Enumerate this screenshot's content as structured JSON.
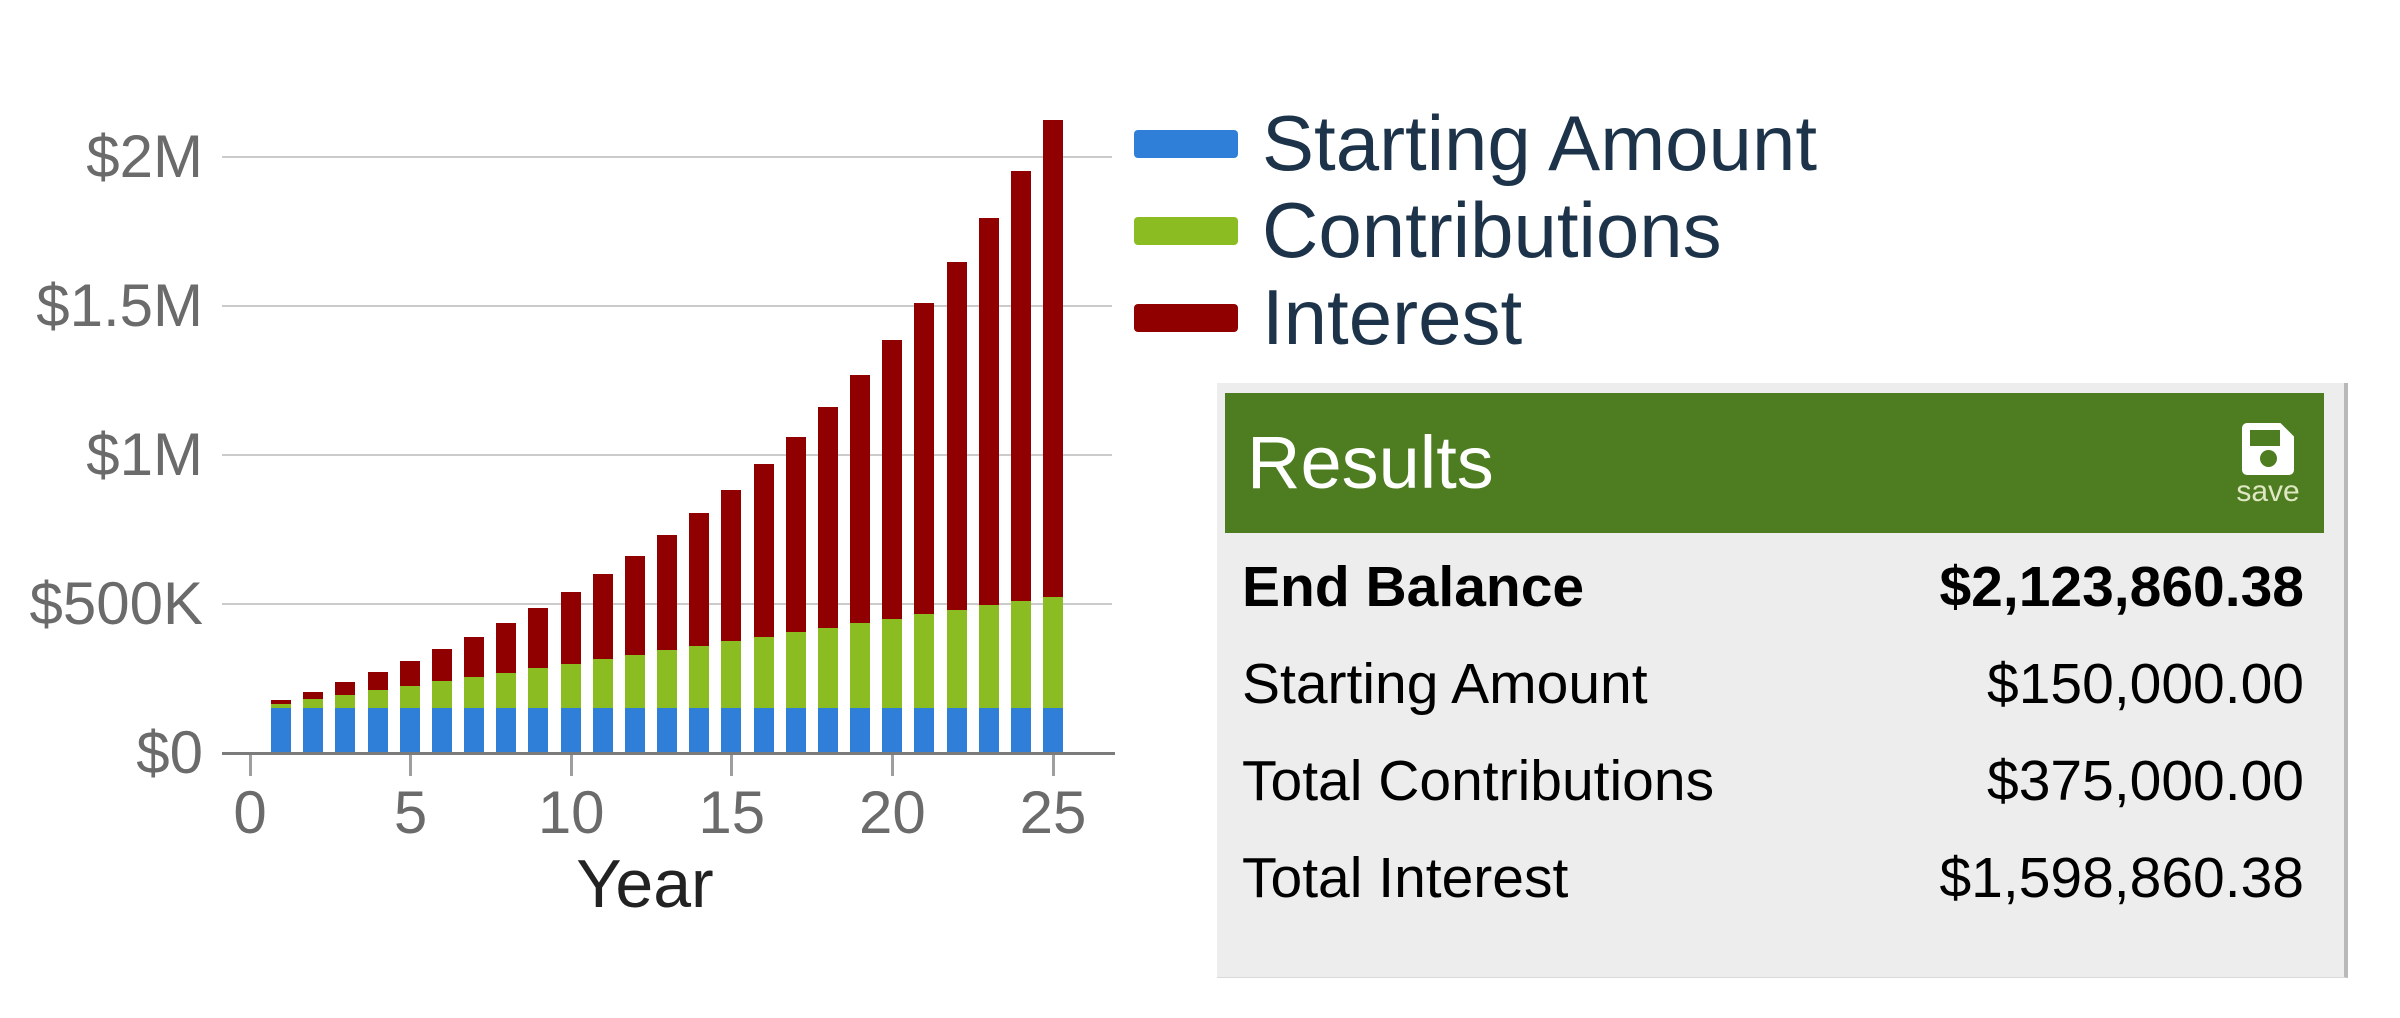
{
  "chart": {
    "y_axis": {
      "labels": [
        "$0",
        "$500K",
        "$1M",
        "$1.5M",
        "$2M"
      ]
    },
    "x_axis": {
      "title": "Year",
      "ticks": [
        "0",
        "5",
        "10",
        "15",
        "20",
        "25"
      ]
    },
    "legend": [
      {
        "label": "Starting Amount",
        "color": "#2f7ed8"
      },
      {
        "label": "Contributions",
        "color": "#8bbc21"
      },
      {
        "label": "Interest",
        "color": "#910000"
      }
    ]
  },
  "chart_data": {
    "type": "bar",
    "stacked": true,
    "title": "",
    "xlabel": "Year",
    "ylabel": "",
    "ylim": [
      0,
      2200000
    ],
    "ytick_step": 500000,
    "grid": true,
    "legend_position": "top-right",
    "x": [
      1,
      2,
      3,
      4,
      5,
      6,
      7,
      8,
      9,
      10,
      11,
      12,
      13,
      14,
      15,
      16,
      17,
      18,
      19,
      20,
      21,
      22,
      23,
      24,
      25
    ],
    "series": [
      {
        "name": "Starting Amount",
        "color": "#2f7ed8",
        "values": [
          150000,
          150000,
          150000,
          150000,
          150000,
          150000,
          150000,
          150000,
          150000,
          150000,
          150000,
          150000,
          150000,
          150000,
          150000,
          150000,
          150000,
          150000,
          150000,
          150000,
          150000,
          150000,
          150000,
          150000,
          150000
        ]
      },
      {
        "name": "Contributions",
        "color": "#8bbc21",
        "values": [
          15000,
          30000,
          45000,
          60000,
          75000,
          90000,
          105000,
          120000,
          135000,
          150000,
          165000,
          180000,
          195000,
          210000,
          225000,
          240000,
          255000,
          270000,
          285000,
          300000,
          315000,
          330000,
          345000,
          360000,
          375000
        ]
      },
      {
        "name": "Interest",
        "color": "#910000",
        "values": [
          12000,
          26160,
          42653,
          61665,
          83398,
          108070,
          135916,
          167189,
          202164,
          241137,
          284428,
          332382,
          385373,
          443803,
          508107,
          578756,
          656256,
          741157,
          834049,
          935573,
          1046419,
          1167332,
          1299119,
          1442649,
          1598860
        ]
      }
    ]
  },
  "results": {
    "title": "Results",
    "save_label": "save",
    "rows": [
      {
        "label": "End Balance",
        "value": "$2,123,860.38"
      },
      {
        "label": "Starting Amount",
        "value": "$150,000.00"
      },
      {
        "label": "Total Contributions",
        "value": "$375,000.00"
      },
      {
        "label": "Total Interest",
        "value": "$1,598,860.38"
      }
    ]
  },
  "colors": {
    "header_green": "#4d7d20",
    "panel_bg": "#ededed",
    "grid_line": "#cbcbcb",
    "axis_text": "#6b6b6b",
    "legend_text": "#1d3349"
  }
}
